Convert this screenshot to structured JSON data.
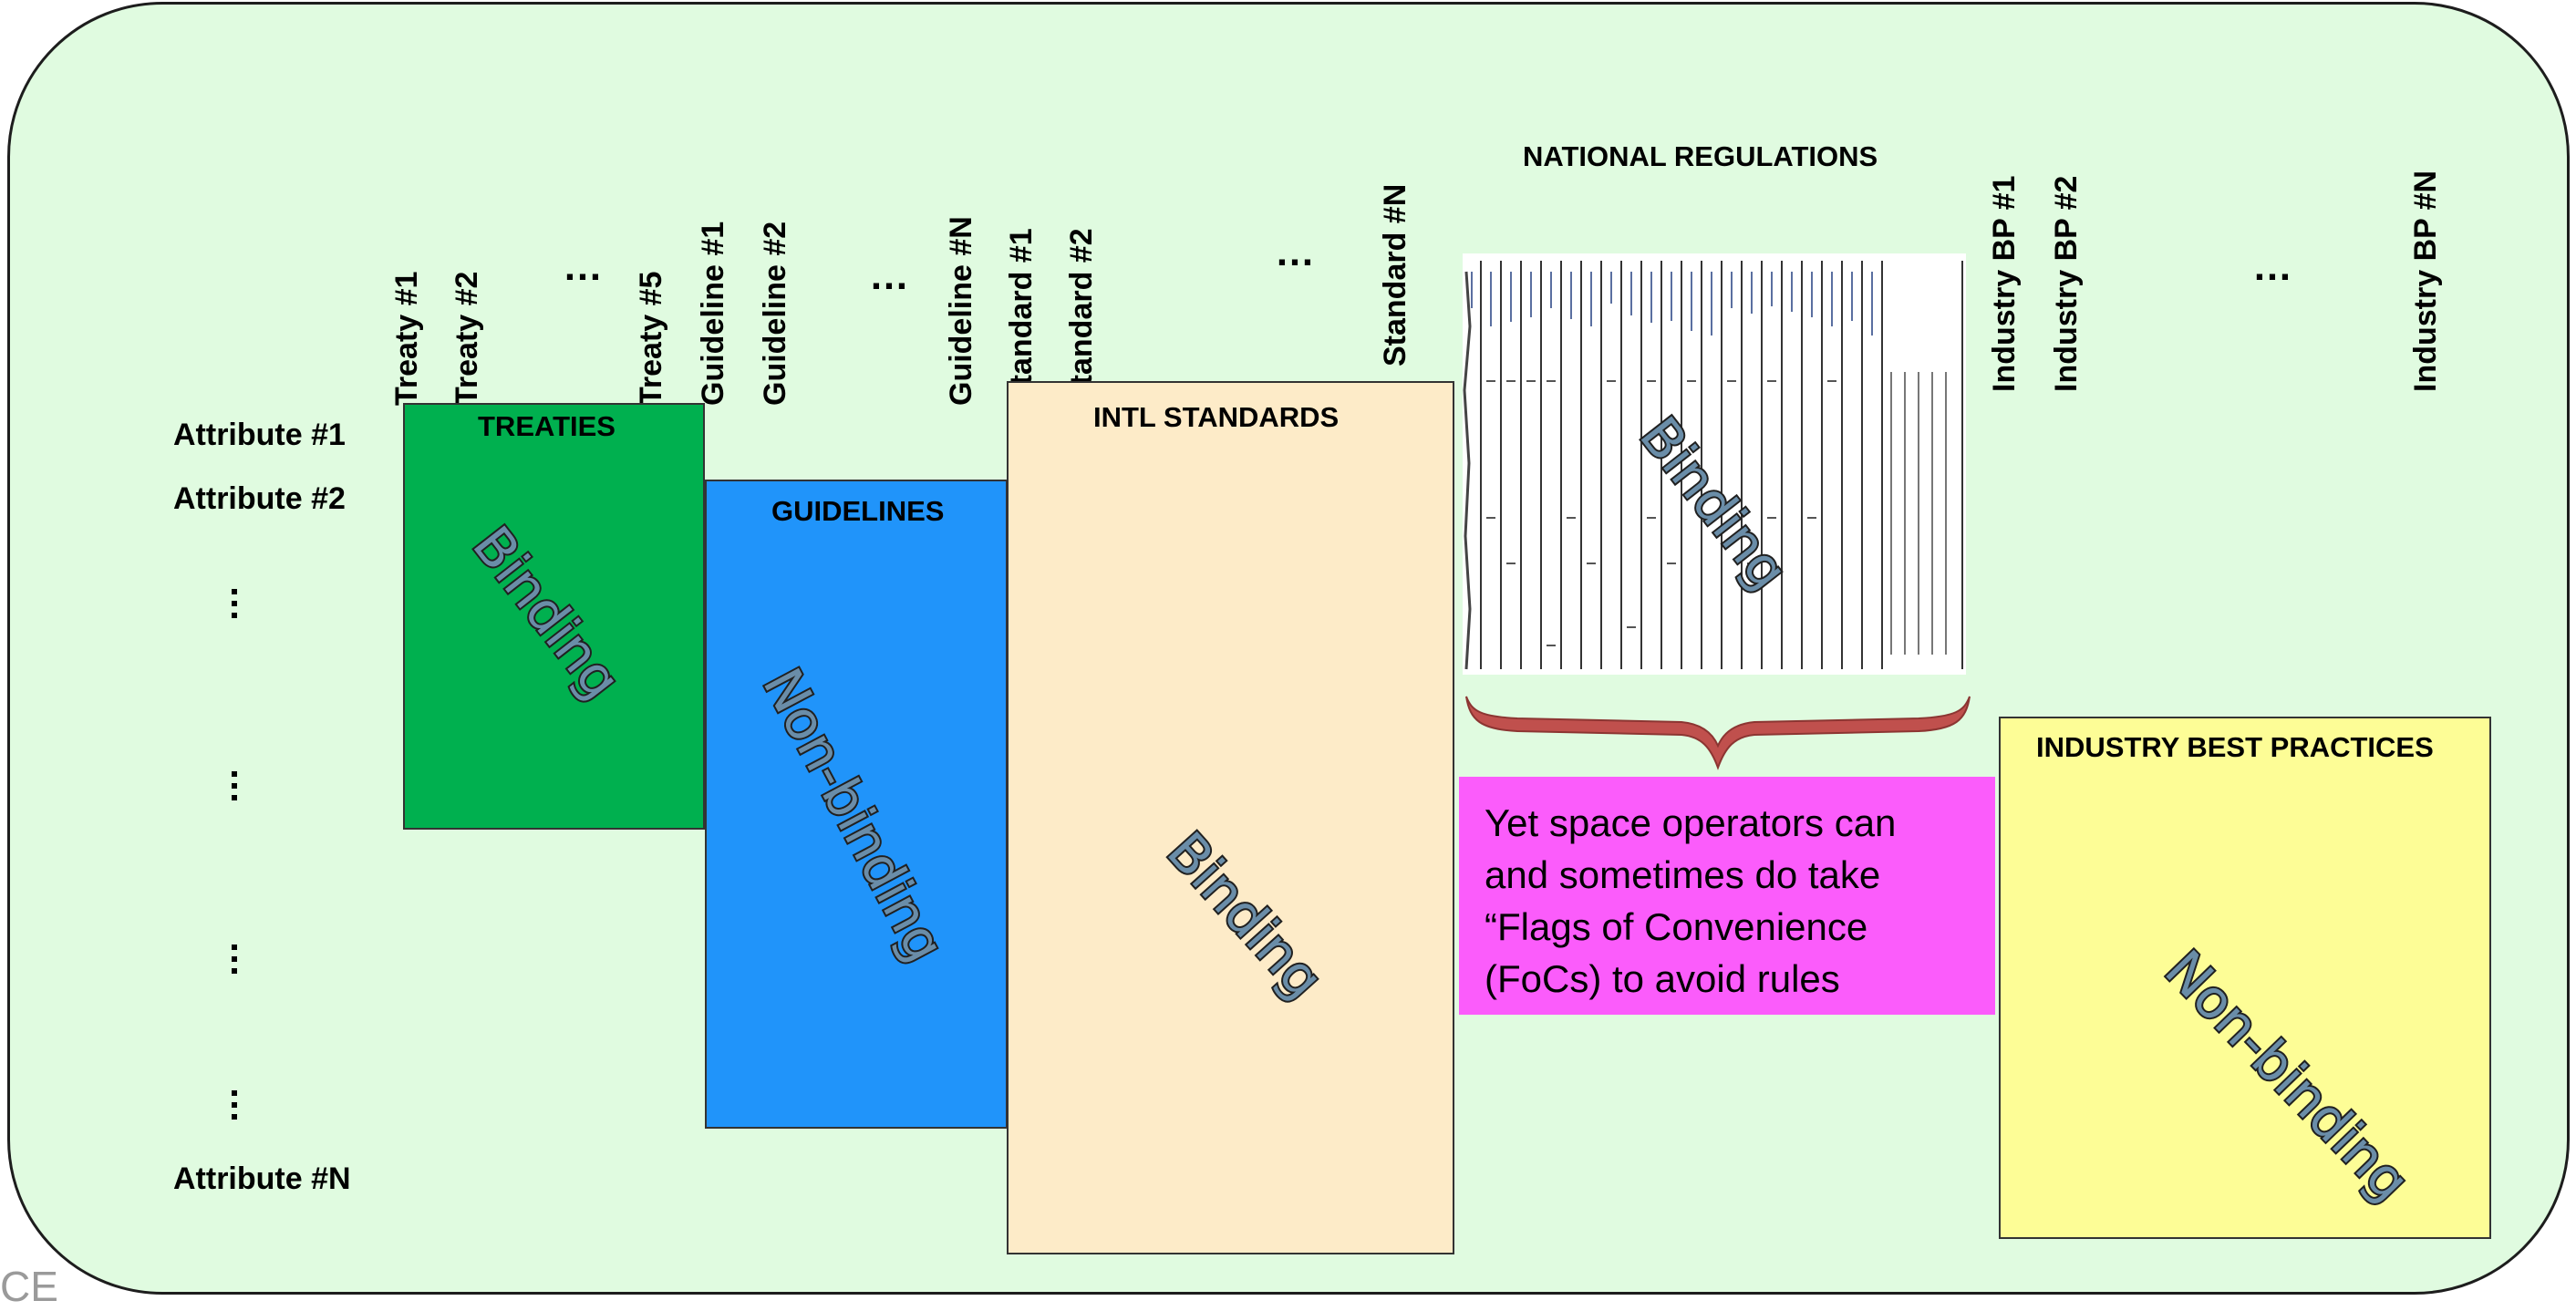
{
  "column_labels": {
    "treaty_1": "Treaty #1",
    "treaty_2": "Treaty #2",
    "treaty_5": "Treaty #5",
    "guideline_1": "Guideline #1",
    "guideline_2": "Guideline #2",
    "guideline_n": "Guideline #N",
    "standard_1": "Standard #1",
    "standard_2": "Standard #2",
    "standard_n": "Standard #N",
    "industry_bp_1": "Industry BP #1",
    "industry_bp_2": "Industry BP #2",
    "industry_bp_n": "Industry BP #N",
    "ellipsis": "…"
  },
  "row_labels": {
    "attribute_1": "Attribute #1",
    "attribute_2": "Attribute #2",
    "attribute_n": "Attribute #N"
  },
  "boxes": {
    "treaties": {
      "title": "TREATIES",
      "status": "Binding",
      "color": "#00b04f"
    },
    "guidelines": {
      "title": "GUIDELINES",
      "status": "Non-binding",
      "color": "#2094fa"
    },
    "intl_standards": {
      "title": "INTL STANDARDS",
      "status": "Binding",
      "color": "#fdebc8"
    },
    "national_regulations": {
      "title": "NATIONAL REGULATIONS",
      "status": "Binding"
    },
    "industry_best_practices": {
      "title": "INDUSTRY BEST PRACTICES",
      "status": "Non-binding",
      "color": "#fdfd96"
    }
  },
  "callout": {
    "lines": [
      "Yet space operators can",
      "and sometimes do take",
      "“Flags of Convenience",
      "(FoCs) to avoid rules"
    ],
    "color": "#fb5cfb"
  },
  "brace_color": "#c0504d",
  "background_color": "#e0fbe0",
  "corner_text": "CE"
}
